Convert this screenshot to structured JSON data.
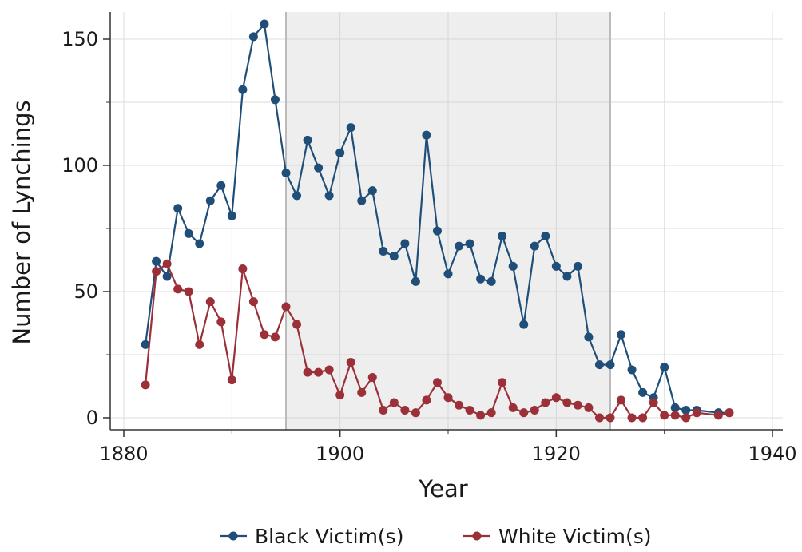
{
  "chart_data": {
    "type": "line",
    "title": "",
    "xlabel": "Year",
    "ylabel": "Number of Lynchings",
    "xlim": [
      1880,
      1940
    ],
    "ylim": [
      0,
      160
    ],
    "xticks": [
      1880,
      1900,
      1920,
      1940
    ],
    "yticks": [
      0,
      50,
      100,
      150
    ],
    "grid": true,
    "shaded_region": [
      1895,
      1925
    ],
    "legend_position": "bottom",
    "series": [
      {
        "name": "Black Victim(s)",
        "color": "#1f4e79",
        "x": [
          1882,
          1883,
          1884,
          1885,
          1886,
          1887,
          1888,
          1889,
          1890,
          1891,
          1892,
          1893,
          1894,
          1895,
          1896,
          1897,
          1898,
          1899,
          1900,
          1901,
          1902,
          1903,
          1904,
          1905,
          1906,
          1907,
          1908,
          1909,
          1910,
          1911,
          1912,
          1913,
          1914,
          1915,
          1916,
          1917,
          1918,
          1919,
          1920,
          1921,
          1922,
          1923,
          1924,
          1925,
          1926,
          1927,
          1928,
          1929,
          1930,
          1931,
          1932,
          1933,
          1935,
          1936
        ],
        "y": [
          29,
          62,
          56,
          83,
          73,
          69,
          86,
          92,
          80,
          130,
          151,
          156,
          126,
          97,
          88,
          110,
          99,
          88,
          105,
          115,
          86,
          90,
          66,
          64,
          69,
          54,
          112,
          74,
          57,
          68,
          69,
          55,
          54,
          72,
          60,
          37,
          68,
          72,
          60,
          56,
          60,
          32,
          21,
          21,
          33,
          19,
          10,
          8,
          20,
          4,
          3,
          3,
          2,
          2
        ]
      },
      {
        "name": "White Victim(s)",
        "color": "#9b3039",
        "x": [
          1882,
          1883,
          1884,
          1885,
          1886,
          1887,
          1888,
          1889,
          1890,
          1891,
          1892,
          1893,
          1894,
          1895,
          1896,
          1897,
          1898,
          1899,
          1900,
          1901,
          1902,
          1903,
          1904,
          1905,
          1906,
          1907,
          1908,
          1909,
          1910,
          1911,
          1912,
          1913,
          1914,
          1915,
          1916,
          1917,
          1918,
          1919,
          1920,
          1921,
          1922,
          1923,
          1924,
          1925,
          1926,
          1927,
          1928,
          1929,
          1930,
          1931,
          1932,
          1933,
          1935,
          1936
        ],
        "y": [
          13,
          58,
          61,
          51,
          50,
          29,
          46,
          38,
          15,
          59,
          46,
          33,
          32,
          44,
          37,
          18,
          18,
          19,
          9,
          22,
          10,
          16,
          3,
          6,
          3,
          2,
          7,
          14,
          8,
          5,
          3,
          1,
          2,
          14,
          4,
          2,
          3,
          6,
          8,
          6,
          5,
          4,
          0,
          0,
          7,
          0,
          0,
          6,
          1,
          1,
          0,
          2,
          1,
          2
        ]
      }
    ]
  }
}
